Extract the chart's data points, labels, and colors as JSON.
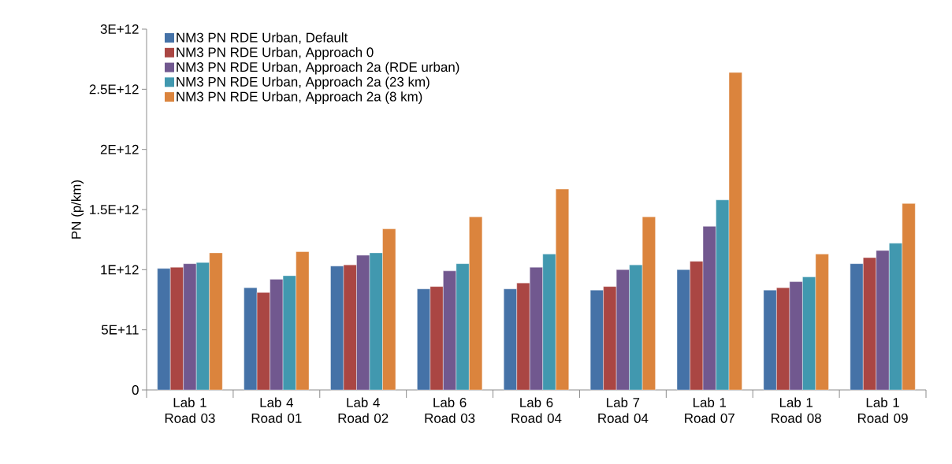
{
  "chart_data": {
    "type": "bar",
    "ylabel": "PN (p/km)",
    "categories": [
      "Lab 1 Road 03",
      "Lab 4 Road 01",
      "Lab 4 Road 02",
      "Lab 6 Road 03",
      "Lab 6 Road 04",
      "Lab 7 Road 04",
      "Lab 1 Road 07",
      "Lab 1 Road 08",
      "Lab 1 Road 09"
    ],
    "series": [
      {
        "name": "NM3 PN RDE Urban, Default",
        "color": "#4572a7",
        "values": [
          1010000000000.0,
          850000000000.0,
          1030000000000.0,
          840000000000.0,
          840000000000.0,
          830000000000.0,
          1000000000000.0,
          830000000000.0,
          1050000000000.0
        ]
      },
      {
        "name": "NM3 PN RDE Urban, Approach 0",
        "color": "#aa4643",
        "values": [
          1020000000000.0,
          810000000000.0,
          1040000000000.0,
          860000000000.0,
          890000000000.0,
          860000000000.0,
          1070000000000.0,
          850000000000.0,
          1100000000000.0
        ]
      },
      {
        "name": "NM3 PN RDE Urban, Approach 2a (RDE urban)",
        "color": "#71588f",
        "values": [
          1050000000000.0,
          920000000000.0,
          1120000000000.0,
          990000000000.0,
          1020000000000.0,
          1000000000000.0,
          1360000000000.0,
          900000000000.0,
          1160000000000.0
        ]
      },
      {
        "name": "NM3 PN RDE Urban, Approach 2a (23 km)",
        "color": "#4198af",
        "values": [
          1060000000000.0,
          950000000000.0,
          1140000000000.0,
          1050000000000.0,
          1130000000000.0,
          1040000000000.0,
          1580000000000.0,
          940000000000.0,
          1220000000000.0
        ]
      },
      {
        "name": "NM3 PN RDE Urban, Approach 2a (8 km)",
        "color": "#db843d",
        "values": [
          1140000000000.0,
          1150000000000.0,
          1340000000000.0,
          1440000000000.0,
          1670000000000.0,
          1440000000000.0,
          2640000000000.0,
          1130000000000.0,
          1550000000000.0
        ]
      }
    ],
    "ylim": [
      0,
      3000000000000.0
    ],
    "yticks": [
      0,
      {
        "value": 500000000000.0,
        "label": "5E+11"
      },
      {
        "value": 1000000000000.0,
        "label": "1E+12"
      },
      {
        "value": 1500000000000.0,
        "label": "1.5E+12"
      },
      {
        "value": 2000000000000.0,
        "label": "2E+12"
      },
      {
        "value": 2500000000000.0,
        "label": "2.5E+12"
      },
      {
        "value": 3000000000000.0,
        "label": "3E+12"
      }
    ],
    "legend": "top left"
  }
}
